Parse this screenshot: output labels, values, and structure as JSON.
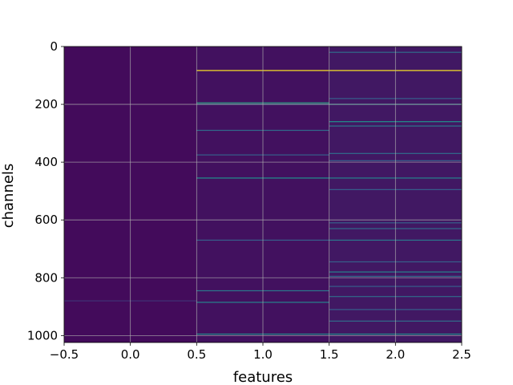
{
  "chart_data": {
    "type": "heatmap",
    "title": "",
    "xlabel": "features",
    "ylabel": "channels",
    "colormap": "viridis",
    "grid": true,
    "xlim": [
      -0.5,
      2.5
    ],
    "ylim": [
      1024,
      0
    ],
    "y_inverted": true,
    "x_ticks": [
      -0.5,
      0.0,
      0.5,
      1.0,
      1.5,
      2.0,
      2.5
    ],
    "x_tick_labels": [
      "−0.5",
      "0.0",
      "0.5",
      "1.0",
      "1.5",
      "2.0",
      "2.5"
    ],
    "y_ticks": [
      0,
      200,
      400,
      600,
      800,
      1000
    ],
    "y_tick_labels": [
      "0",
      "200",
      "400",
      "600",
      "800",
      "1000"
    ],
    "columns": [
      0,
      1,
      2
    ],
    "n_channels": 1024,
    "value_range": [
      0,
      1
    ],
    "background_value": 0.05,
    "column_background": [
      0.03,
      0.05,
      0.07
    ],
    "highlights": [
      {
        "column": 1,
        "channel": 83,
        "value": 1.0
      },
      {
        "column": 1,
        "channel": 195,
        "value": 0.55
      },
      {
        "column": 1,
        "channel": 200,
        "value": 0.45
      },
      {
        "column": 1,
        "channel": 290,
        "value": 0.35
      },
      {
        "column": 1,
        "channel": 375,
        "value": 0.3
      },
      {
        "column": 1,
        "channel": 455,
        "value": 0.5
      },
      {
        "column": 1,
        "channel": 670,
        "value": 0.3
      },
      {
        "column": 1,
        "channel": 845,
        "value": 0.4
      },
      {
        "column": 1,
        "channel": 885,
        "value": 0.45
      },
      {
        "column": 1,
        "channel": 995,
        "value": 0.5
      },
      {
        "column": 2,
        "channel": 83,
        "value": 1.0
      },
      {
        "column": 2,
        "channel": 20,
        "value": 0.35
      },
      {
        "column": 2,
        "channel": 180,
        "value": 0.3
      },
      {
        "column": 2,
        "channel": 200,
        "value": 0.5
      },
      {
        "column": 2,
        "channel": 260,
        "value": 0.5
      },
      {
        "column": 2,
        "channel": 275,
        "value": 0.4
      },
      {
        "column": 2,
        "channel": 370,
        "value": 0.35
      },
      {
        "column": 2,
        "channel": 395,
        "value": 0.3
      },
      {
        "column": 2,
        "channel": 455,
        "value": 0.45
      },
      {
        "column": 2,
        "channel": 495,
        "value": 0.3
      },
      {
        "column": 2,
        "channel": 610,
        "value": 0.3
      },
      {
        "column": 2,
        "channel": 630,
        "value": 0.35
      },
      {
        "column": 2,
        "channel": 670,
        "value": 0.4
      },
      {
        "column": 2,
        "channel": 745,
        "value": 0.3
      },
      {
        "column": 2,
        "channel": 780,
        "value": 0.45
      },
      {
        "column": 2,
        "channel": 795,
        "value": 0.35
      },
      {
        "column": 2,
        "channel": 830,
        "value": 0.3
      },
      {
        "column": 2,
        "channel": 865,
        "value": 0.35
      },
      {
        "column": 2,
        "channel": 910,
        "value": 0.3
      },
      {
        "column": 2,
        "channel": 950,
        "value": 0.35
      },
      {
        "column": 2,
        "channel": 995,
        "value": 0.5
      },
      {
        "column": 0,
        "channel": 880,
        "value": 0.15
      }
    ]
  }
}
